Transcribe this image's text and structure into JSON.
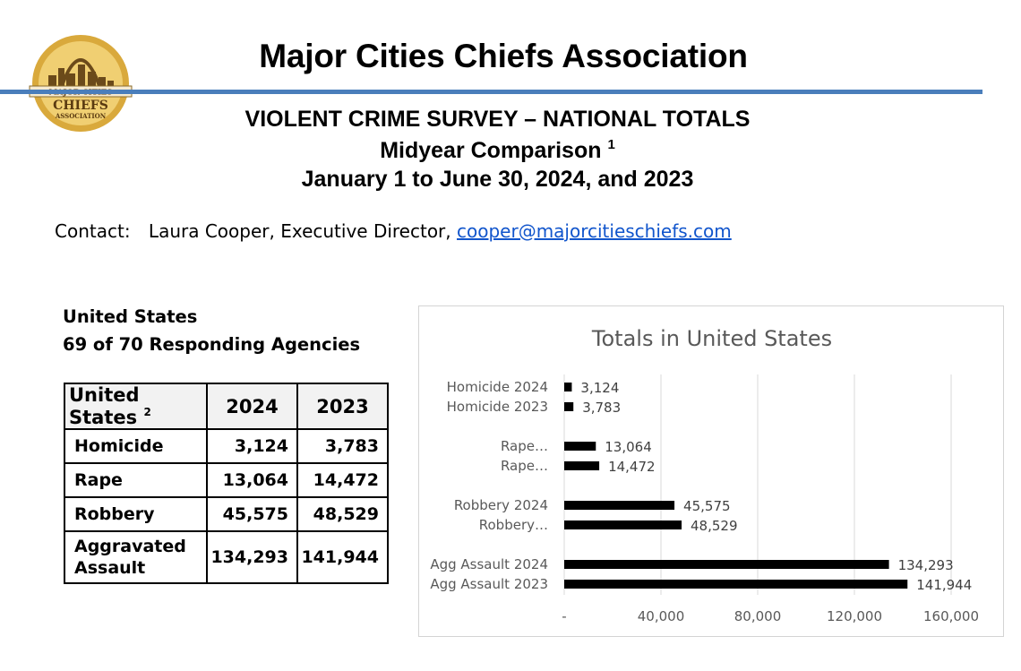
{
  "header": {
    "logo_text_top": "MAJOR CITIES",
    "logo_text_mid": "CHIEFS",
    "logo_text_bottom": "ASSOCIATION",
    "title": "Major Cities Chiefs Association",
    "subtitle1": "VIOLENT CRIME SURVEY – NATIONAL TOTALS",
    "subtitle2": "Midyear Comparison",
    "subtitle2_note": "1",
    "subtitle3": "January 1 to June 30, 2024, and 2023"
  },
  "contact": {
    "label": "Contact:",
    "name": "Laura Cooper, Executive Director,",
    "email": "cooper@majorcitieschiefs.com"
  },
  "region": {
    "name": "United States",
    "agencies": "69 of 70 Responding Agencies"
  },
  "table": {
    "header": {
      "label": "United States",
      "note": "2",
      "col1": "2024",
      "col2": "2023"
    },
    "rows": [
      {
        "name": "Homicide",
        "v2024": "3,124",
        "v2023": "3,783"
      },
      {
        "name": "Rape",
        "v2024": "13,064",
        "v2023": "14,472"
      },
      {
        "name": "Robbery",
        "v2024": "45,575",
        "v2023": "48,529"
      },
      {
        "name": "Aggravated Assault",
        "v2024": "134,293",
        "v2023": "141,944"
      }
    ]
  },
  "chart_data": {
    "type": "bar",
    "orientation": "horizontal",
    "title": "Totals in United States",
    "categories": [
      "Homicide 2024",
      "Homicide 2023",
      "Rape…",
      "Rape…",
      "Robbery 2024",
      "Robbery…",
      "Agg Assault 2024",
      "Agg Assault 2023"
    ],
    "groups": [
      [
        0,
        1
      ],
      [
        2,
        3
      ],
      [
        4,
        5
      ],
      [
        6,
        7
      ]
    ],
    "values": [
      3124,
      3783,
      13064,
      14472,
      45575,
      48529,
      134293,
      141944
    ],
    "data_labels": [
      "3,124",
      "3,783",
      "13,064",
      "14,472",
      "45,575",
      "48,529",
      "134,293",
      "141,944"
    ],
    "xlim": [
      0,
      160000
    ],
    "x_ticks": [
      0,
      40000,
      80000,
      120000,
      160000
    ],
    "x_tick_labels": [
      "-",
      "40,000",
      "80,000",
      "120,000",
      "160,000"
    ],
    "bar_color": "#000000",
    "grid": true,
    "legend": "none"
  }
}
